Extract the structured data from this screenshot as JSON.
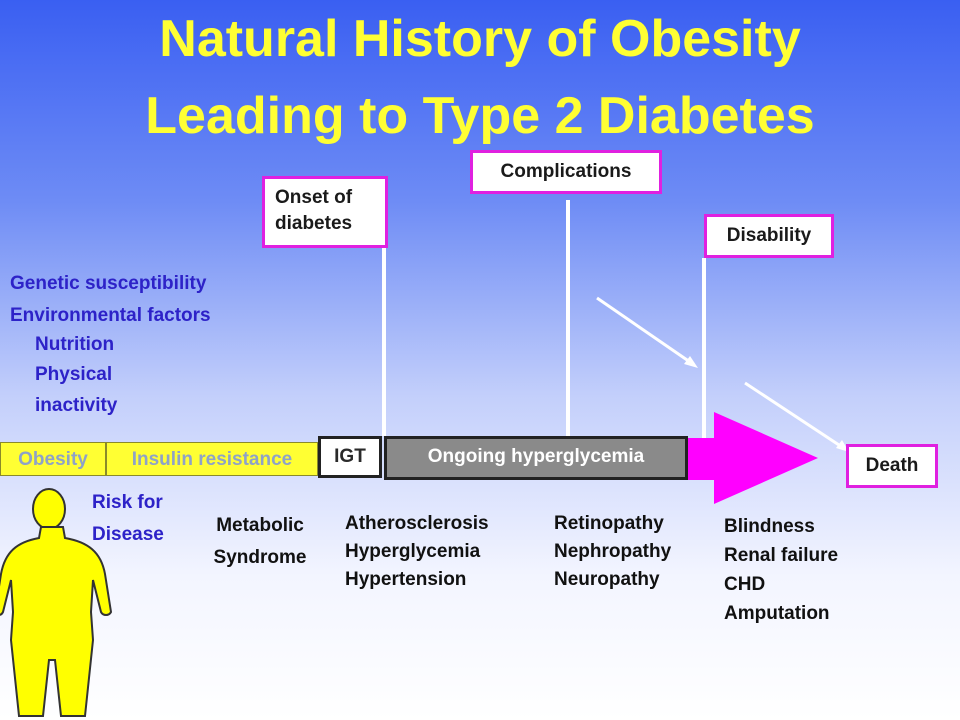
{
  "title": {
    "line1": "Natural History of Obesity",
    "line2": "Leading to Type 2 Diabetes"
  },
  "boxes": {
    "onset": [
      "Onset of",
      "diabetes"
    ],
    "complications": "Complications",
    "disability": "Disability",
    "death": "Death"
  },
  "risk_factors": {
    "genetic": "Genetic susceptibility",
    "environmental": "Environmental factors",
    "nutrition": "Nutrition",
    "physical": "Physical",
    "inactivity": "inactivity"
  },
  "timeline": {
    "obesity": "Obesity",
    "insulin_resistance": "Insulin resistance",
    "igt": "IGT",
    "hyperglycemia": "Ongoing hyperglycemia"
  },
  "risk_label": [
    "Risk for",
    "Disease"
  ],
  "outcomes": {
    "metabolic": [
      "Metabolic",
      "Syndrome"
    ],
    "atherosclerosis": [
      "Atherosclerosis",
      "Hyperglycemia",
      "Hypertension"
    ],
    "retinopathy": [
      "Retinopathy",
      "Nephropathy",
      "Neuropathy"
    ],
    "blindness": [
      "Blindness",
      "Renal failure",
      "CHD",
      "Amputation"
    ]
  },
  "colors": {
    "title": "#ffff33",
    "box_border": "#e020e0",
    "arrow": "#ff00ff",
    "figure": "#ffff00",
    "risk_text": "#2d22c8"
  }
}
